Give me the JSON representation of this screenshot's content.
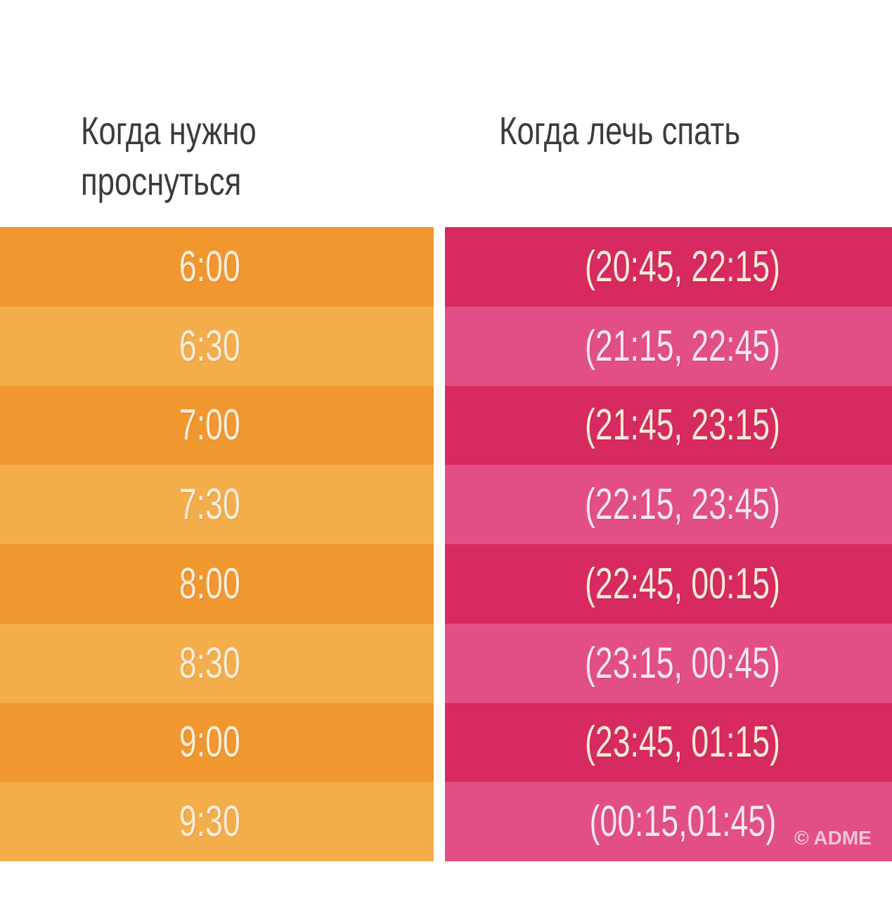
{
  "headers": {
    "wake_line1": "Когда нужно",
    "wake_line2": "проснуться",
    "sleep": "Когда лечь спать"
  },
  "rows": [
    {
      "wake": "6:00",
      "sleep": "(20:45, 22:15)"
    },
    {
      "wake": "6:30",
      "sleep": "(21:15, 22:45)"
    },
    {
      "wake": "7:00",
      "sleep": "(21:45, 23:15)"
    },
    {
      "wake": "7:30",
      "sleep": "(22:15, 23:45)"
    },
    {
      "wake": "8:00",
      "sleep": "(22:45, 00:15)"
    },
    {
      "wake": "8:30",
      "sleep": "(23:15, 00:45)"
    },
    {
      "wake": "9:00",
      "sleep": "(23:45, 01:15)"
    },
    {
      "wake": "9:30",
      "sleep": "(00:15,01:45)"
    }
  ],
  "watermark": "© ADME",
  "colors": {
    "orange_dark": "#f0972f",
    "orange_light": "#f4ad4b",
    "pink_dark": "#d72a60",
    "pink_light": "#e24f87"
  }
}
